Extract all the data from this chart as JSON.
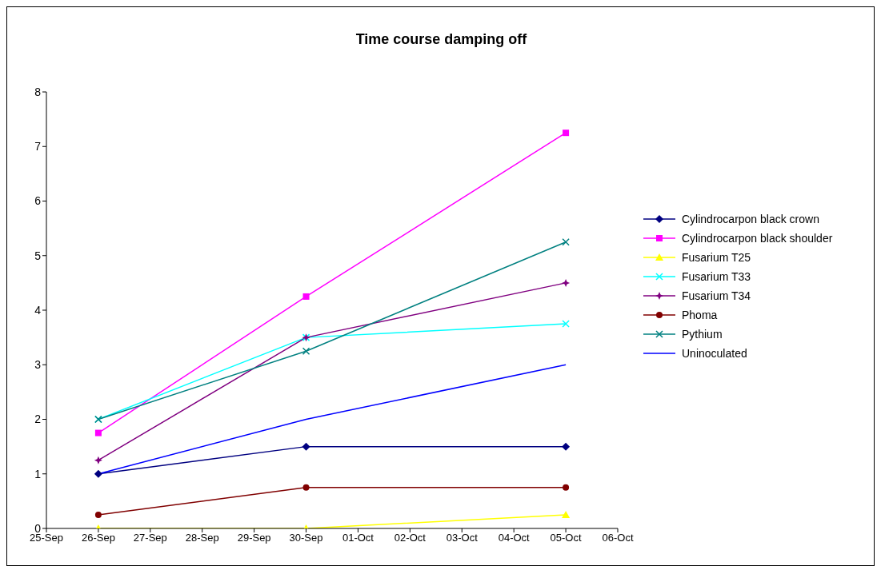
{
  "chart_data": {
    "type": "line",
    "title": "Time course damping off",
    "x": [
      "--09-26",
      "--09-30",
      "--10-05"
    ],
    "series": [
      {
        "name": "Cylindrocarpon black crown",
        "color": "#000080",
        "marker": "diamond",
        "values": [
          1,
          1.5,
          1.5
        ]
      },
      {
        "name": "Cylindrocarpon black shoulder",
        "color": "#ff00ff",
        "marker": "square",
        "values": [
          1.75,
          4.25,
          7.25
        ]
      },
      {
        "name": "Fusarium T25",
        "color": "#ffff00",
        "marker": "triangle",
        "values": [
          0,
          0,
          0.25
        ]
      },
      {
        "name": "Fusarium T33",
        "color": "#00ffff",
        "marker": "cross",
        "values": [
          2,
          3.5,
          3.75
        ]
      },
      {
        "name": "Fusarium T34",
        "color": "#800080",
        "marker": "star",
        "values": [
          1.25,
          3.5,
          4.5
        ]
      },
      {
        "name": "Phoma",
        "color": "#800000",
        "marker": "circle",
        "values": [
          0.25,
          0.75,
          0.75
        ]
      },
      {
        "name": "Pythium",
        "color": "#008080",
        "marker": "cross",
        "values": [
          2,
          3.25,
          5.25
        ]
      },
      {
        "name": "Uninoculated",
        "color": "#0000ff",
        "marker": "none",
        "values": [
          1,
          2,
          3
        ]
      }
    ],
    "xlim": [
      "--09-25",
      "--10-06"
    ],
    "xticks": [
      {
        "value": "--09-25",
        "label": "25-Sep"
      },
      {
        "value": "--09-26",
        "label": "26-Sep"
      },
      {
        "value": "--09-27",
        "label": "27-Sep"
      },
      {
        "value": "--09-28",
        "label": "28-Sep"
      },
      {
        "value": "--09-29",
        "label": "29-Sep"
      },
      {
        "value": "--09-30",
        "label": "30-Sep"
      },
      {
        "value": "--10-01",
        "label": "01-Oct"
      },
      {
        "value": "--10-02",
        "label": "02-Oct"
      },
      {
        "value": "--10-03",
        "label": "03-Oct"
      },
      {
        "value": "--10-04",
        "label": "04-Oct"
      },
      {
        "value": "--10-05",
        "label": "05-Oct"
      },
      {
        "value": "--10-06",
        "label": "06-Oct"
      }
    ],
    "ylim": [
      0,
      8
    ],
    "yticks": [
      0,
      1,
      2,
      3,
      4,
      5,
      6,
      7,
      8
    ],
    "grid": false,
    "legend": "right",
    "line_style": "solid"
  }
}
